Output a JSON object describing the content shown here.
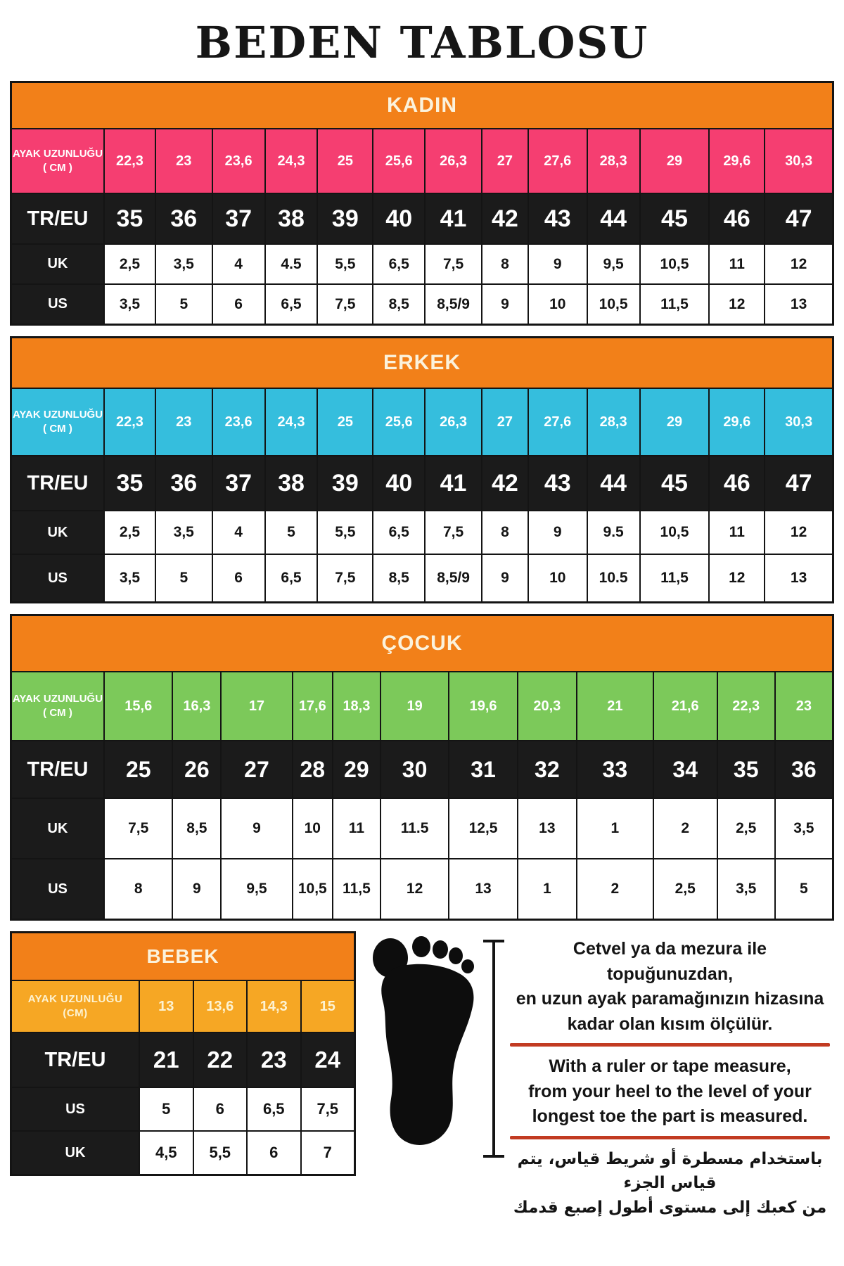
{
  "title": "BEDEN TABLOSU",
  "labels": {
    "foot_length": "AYAK UZUNLUĞU",
    "foot_length_unit": "( CM )",
    "tr_eu": "TR/EU",
    "uk": "UK",
    "us": "US"
  },
  "tables": {
    "kadin": {
      "header": "KADIN",
      "accent": "#F53E71",
      "foot_cm": [
        "22,3",
        "23",
        "23,6",
        "24,3",
        "25",
        "25,6",
        "26,3",
        "27",
        "27,6",
        "28,3",
        "29",
        "29,6",
        "30,3"
      ],
      "tr_eu": [
        "35",
        "36",
        "37",
        "38",
        "39",
        "40",
        "41",
        "42",
        "43",
        "44",
        "45",
        "46",
        "47"
      ],
      "uk": [
        "2,5",
        "3,5",
        "4",
        "4.5",
        "5,5",
        "6,5",
        "7,5",
        "8",
        "9",
        "9,5",
        "10,5",
        "11",
        "12"
      ],
      "us": [
        "3,5",
        "5",
        "6",
        "6,5",
        "7,5",
        "8,5",
        "8,5/9",
        "9",
        "10",
        "10,5",
        "11,5",
        "12",
        "13"
      ]
    },
    "erkek": {
      "header": "ERKEK",
      "accent": "#35BEDD",
      "foot_cm": [
        "22,3",
        "23",
        "23,6",
        "24,3",
        "25",
        "25,6",
        "26,3",
        "27",
        "27,6",
        "28,3",
        "29",
        "29,6",
        "30,3"
      ],
      "tr_eu": [
        "35",
        "36",
        "37",
        "38",
        "39",
        "40",
        "41",
        "42",
        "43",
        "44",
        "45",
        "46",
        "47"
      ],
      "uk": [
        "2,5",
        "3,5",
        "4",
        "5",
        "5,5",
        "6,5",
        "7,5",
        "8",
        "9",
        "9.5",
        "10,5",
        "11",
        "12"
      ],
      "us": [
        "3,5",
        "5",
        "6",
        "6,5",
        "7,5",
        "8,5",
        "8,5/9",
        "9",
        "10",
        "10.5",
        "11,5",
        "12",
        "13"
      ]
    },
    "cocuk": {
      "header": "ÇOCUK",
      "accent": "#7CC95A",
      "foot_cm": [
        "15,6",
        "16,3",
        "17",
        "17,6",
        "18,3",
        "19",
        "19,6",
        "20,3",
        "21",
        "21,6",
        "22,3",
        "23"
      ],
      "tr_eu": [
        "25",
        "26",
        "27",
        "28",
        "29",
        "30",
        "31",
        "32",
        "33",
        "34",
        "35",
        "36"
      ],
      "uk": [
        "7,5",
        "8,5",
        "9",
        "10",
        "11",
        "11.5",
        "12,5",
        "13",
        "1",
        "2",
        "2,5",
        "3,5"
      ],
      "us": [
        "8",
        "9",
        "9,5",
        "10,5",
        "11,5",
        "12",
        "13",
        "1",
        "2",
        "2,5",
        "3,5",
        "5"
      ]
    },
    "bebek": {
      "header": "BEBEK",
      "accent": "#F6A724",
      "foot_label": "AYAK UZUNLUĞU",
      "foot_unit": "(CM)",
      "foot_cm": [
        "13",
        "13,6",
        "14,3",
        "15"
      ],
      "tr_eu": [
        "21",
        "22",
        "23",
        "24"
      ],
      "us": [
        "5",
        "6",
        "6,5",
        "7,5"
      ],
      "uk": [
        "4,5",
        "5,5",
        "6",
        "7"
      ]
    }
  },
  "instructions": {
    "turkish_lines": [
      "Cetvel ya da mezura ile topuğunuzdan,",
      "en uzun ayak paramağınızın hizasına",
      "kadar olan kısım ölçülür."
    ],
    "english_lines": [
      "With a ruler or tape measure,",
      "from your heel to the level of your",
      "longest toe the part is measured."
    ],
    "arabic_lines": [
      "باستخدام مسطرة أو شريط قياس، يتم قياس الجزء",
      "من كعبك إلى مستوى أطول إصبع قدمك"
    ]
  },
  "colors": {
    "orange": "#F28019",
    "pink": "#F53E71",
    "cyan": "#35BEDD",
    "green": "#7CC95A",
    "amber": "#F6A724",
    "black_row": "#1B1B1B",
    "red_rule": "#C23B22"
  }
}
